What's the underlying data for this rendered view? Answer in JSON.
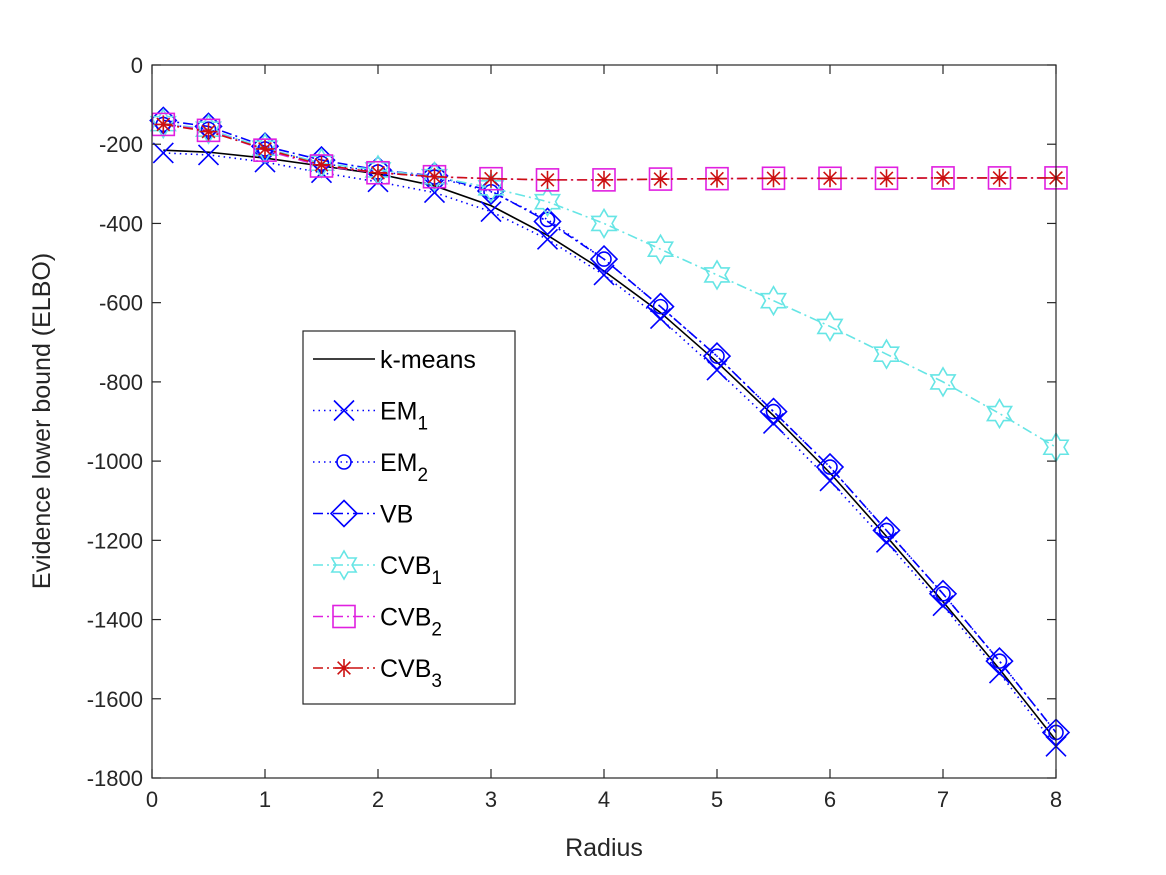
{
  "chart_data": {
    "type": "line",
    "title": "",
    "xlabel": "Radius",
    "ylabel": "Evidence lower bound (ELBO)",
    "xlim": [
      0,
      8
    ],
    "ylim": [
      -1800,
      0
    ],
    "xticks": [
      0,
      1,
      2,
      3,
      4,
      5,
      6,
      7,
      8
    ],
    "yticks": [
      0,
      -200,
      -400,
      -600,
      -800,
      -1000,
      -1200,
      -1400,
      -1600,
      -1800
    ],
    "grid": false,
    "legend_position": "center-left",
    "x": [
      0.1,
      0.5,
      1,
      1.5,
      2,
      2.5,
      3,
      3.5,
      4,
      4.5,
      5,
      5.5,
      6,
      6.5,
      7,
      7.5,
      8
    ],
    "series": [
      {
        "name": "k-means",
        "label_main": "k-means",
        "label_sub": "",
        "color": "#000000",
        "dash": "solid",
        "marker": "none",
        "values": [
          -215,
          -220,
          -235,
          -255,
          -275,
          -305,
          -355,
          -430,
          -520,
          -625,
          -750,
          -885,
          -1030,
          -1190,
          -1355,
          -1525,
          -1705
        ]
      },
      {
        "name": "EM1",
        "label_main": "EM",
        "label_sub": "1",
        "color": "#0000ff",
        "dash": "dotted",
        "marker": "x",
        "values": [
          -222,
          -227,
          -245,
          -272,
          -295,
          -322,
          -370,
          -440,
          -530,
          -640,
          -770,
          -905,
          -1050,
          -1205,
          -1365,
          -1535,
          -1720
        ]
      },
      {
        "name": "EM2",
        "label_main": "EM",
        "label_sub": "2",
        "color": "#0000ff",
        "dash": "dotted",
        "marker": "circle",
        "values": [
          -150,
          -162,
          -212,
          -248,
          -270,
          -283,
          -320,
          -390,
          -490,
          -610,
          -735,
          -875,
          -1015,
          -1175,
          -1335,
          -1505,
          -1685
        ]
      },
      {
        "name": "VB",
        "label_main": "VB",
        "label_sub": "",
        "color": "#0000ff",
        "dash": "dashdot",
        "marker": "diamond",
        "values": [
          -140,
          -155,
          -205,
          -240,
          -265,
          -280,
          -318,
          -395,
          -490,
          -610,
          -735,
          -875,
          -1015,
          -1175,
          -1335,
          -1505,
          -1685
        ]
      },
      {
        "name": "CVB1",
        "label_main": "CVB",
        "label_sub": "1",
        "color": "#66e5e5",
        "dash": "dashdot",
        "marker": "hexagram",
        "values": [
          -148,
          -162,
          -210,
          -248,
          -265,
          -282,
          -310,
          -345,
          -400,
          -465,
          -530,
          -595,
          -660,
          -730,
          -800,
          -880,
          -965
        ]
      },
      {
        "name": "CVB2",
        "label_main": "CVB",
        "label_sub": "2",
        "color": "#e020e0",
        "dash": "dashdot",
        "marker": "square",
        "values": [
          -150,
          -165,
          -215,
          -255,
          -272,
          -282,
          -287,
          -290,
          -290,
          -288,
          -287,
          -286,
          -286,
          -286,
          -285,
          -285,
          -285
        ]
      },
      {
        "name": "CVB3",
        "label_main": "CVB",
        "label_sub": "3",
        "color": "#cc1111",
        "dash": "dashdot",
        "marker": "asterisk",
        "values": [
          -150,
          -168,
          -212,
          -252,
          -272,
          -282,
          -287,
          -290,
          -290,
          -288,
          -287,
          -286,
          -286,
          -286,
          -285,
          -285,
          -285
        ]
      }
    ]
  }
}
